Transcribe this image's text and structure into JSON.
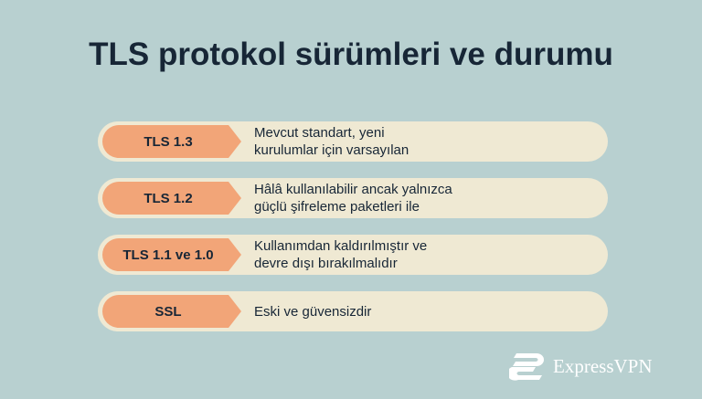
{
  "title": "TLS protokol sürümleri ve durumu",
  "rows": [
    {
      "label": "TLS 1.3",
      "desc_line1": "Mevcut standart, yeni",
      "desc_line2": "kurulumlar için varsayılan"
    },
    {
      "label": "TLS 1.2",
      "desc_line1": "Hâlâ kullanılabilir ancak yalnızca",
      "desc_line2": "güçlü şifreleme paketleri ile"
    },
    {
      "label": "TLS 1.1 ve 1.0",
      "desc_line1": "Kullanımdan kaldırılmıştır ve",
      "desc_line2": "devre dışı bırakılmalıdır"
    },
    {
      "label": "SSL",
      "desc_line1": "Eski ve güvensizdir",
      "desc_line2": ""
    }
  ],
  "logo": {
    "text": "ExpressVPN",
    "icon": "expressvpn-logo-icon"
  },
  "colors": {
    "background": "#b8d0d0",
    "row": "#efe9d3",
    "tag": "#f2a578",
    "text": "#172636"
  }
}
